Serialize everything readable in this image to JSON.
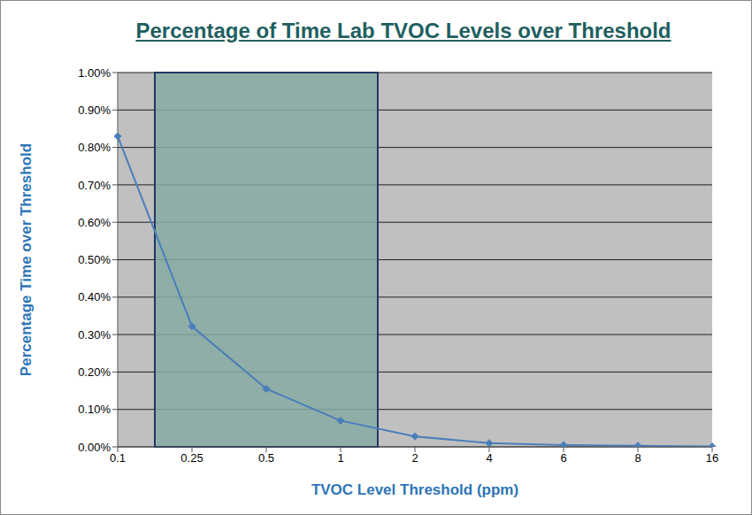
{
  "chart_data": {
    "type": "line",
    "title": "Percentage of Time Lab TVOC Levels over Threshold",
    "x_label": "TVOC Level Threshold (ppm)",
    "y_label": "Percentage Time over Threshold",
    "categories": [
      "0.1",
      "0.25",
      "0.5",
      "1",
      "2",
      "4",
      "6",
      "8",
      "16"
    ],
    "values": [
      0.83,
      0.322,
      0.155,
      0.07,
      0.028,
      0.01,
      0.005,
      0.003,
      0.001
    ],
    "color": "#4a7ebb",
    "marker": "diamond",
    "ylim": [
      0,
      1
    ],
    "yticks": [
      {
        "value": 0,
        "label": "0.00%"
      },
      {
        "value": 0.1,
        "label": "0.10%"
      },
      {
        "value": 0.2,
        "label": "0.20%"
      },
      {
        "value": 0.3,
        "label": "0.30%"
      },
      {
        "value": 0.4,
        "label": "0.40%"
      },
      {
        "value": 0.5,
        "label": "0.50%"
      },
      {
        "value": 0.6,
        "label": "0.60%"
      },
      {
        "value": 0.7,
        "label": "0.70%"
      },
      {
        "value": 0.8,
        "label": "0.80%"
      },
      {
        "value": 0.9,
        "label": "0.90%"
      },
      {
        "value": 1,
        "label": "1.00%"
      }
    ],
    "grid": true,
    "highlight": {
      "from": "0.25",
      "to": "1"
    }
  }
}
